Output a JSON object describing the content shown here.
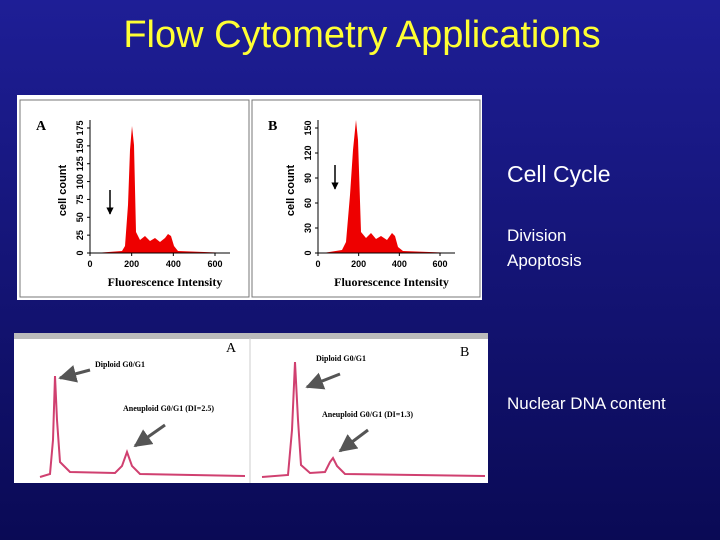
{
  "title": "Flow Cytometry Applications",
  "cell_cycle_figure": {
    "panels": [
      {
        "letter": "A",
        "y_label": "cell count",
        "y_ticks": [
          0,
          25,
          50,
          75,
          100,
          125,
          150,
          175
        ],
        "x_ticks": [
          0,
          200,
          400,
          600
        ],
        "x_label": "Fluorescence Intensity"
      },
      {
        "letter": "B",
        "y_label": "cell count",
        "y_ticks": [
          0,
          30,
          60,
          90,
          120,
          150
        ],
        "x_ticks": [
          0,
          200,
          400,
          600
        ],
        "x_label": "Fluorescence Intensity"
      }
    ]
  },
  "dna_figure": {
    "panels": [
      {
        "letter": "A",
        "diploid": "Diploid G0/G1",
        "aneuploid": "Aneuploid G0/G1 (DI=2.5)"
      },
      {
        "letter": "B",
        "diploid": "Diploid G0/G1",
        "aneuploid": "Aneuploid G0/G1 (DI=1.3)"
      }
    ]
  },
  "bullets": {
    "heading": "Cell Cycle",
    "items": [
      "Division",
      "Apoptosis"
    ],
    "dna": "Nuclear DNA content"
  }
}
